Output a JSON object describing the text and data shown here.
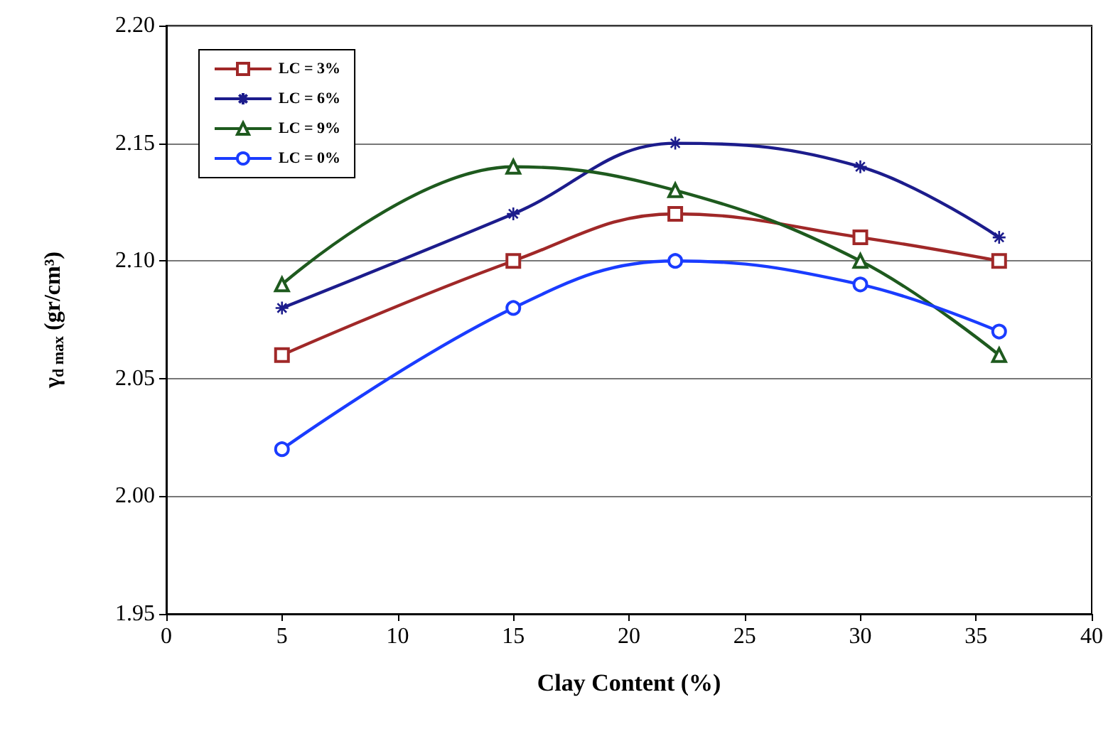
{
  "chart_data": {
    "type": "line",
    "xlabel": "Clay Content (%)",
    "ylabel": "γ$_{d max}$ (gr/cm³)",
    "x": [
      5,
      15,
      22,
      30,
      36
    ],
    "series": [
      {
        "name": "LC = 3%",
        "color": "#a02828",
        "marker": "square",
        "values": [
          2.06,
          2.1,
          2.12,
          2.11,
          2.1
        ]
      },
      {
        "name": "LC = 6%",
        "color": "#1c1c8c",
        "marker": "cross",
        "values": [
          2.08,
          2.12,
          2.15,
          2.14,
          2.11
        ]
      },
      {
        "name": "LC = 9%",
        "color": "#1e5a1e",
        "marker": "triangle",
        "values": [
          2.09,
          2.14,
          2.13,
          2.1,
          2.06
        ]
      },
      {
        "name": "LC = 0%",
        "color": "#1a3cff",
        "marker": "circle",
        "values": [
          2.02,
          2.08,
          2.1,
          2.09,
          2.07
        ]
      }
    ],
    "xlim": [
      0,
      40
    ],
    "xticks": [
      0,
      5,
      10,
      15,
      20,
      25,
      30,
      35,
      40
    ],
    "ylim": [
      1.95,
      2.2
    ],
    "yticks": [
      1.95,
      {
        "value": 2.0,
        "label": "2.00"
      },
      2.05,
      {
        "value": 2.1,
        "label": "2.10"
      },
      2.15,
      {
        "value": 2.2,
        "label": "2.20"
      }
    ],
    "grid": "y",
    "legend": "top left",
    "line_style": "solid"
  }
}
